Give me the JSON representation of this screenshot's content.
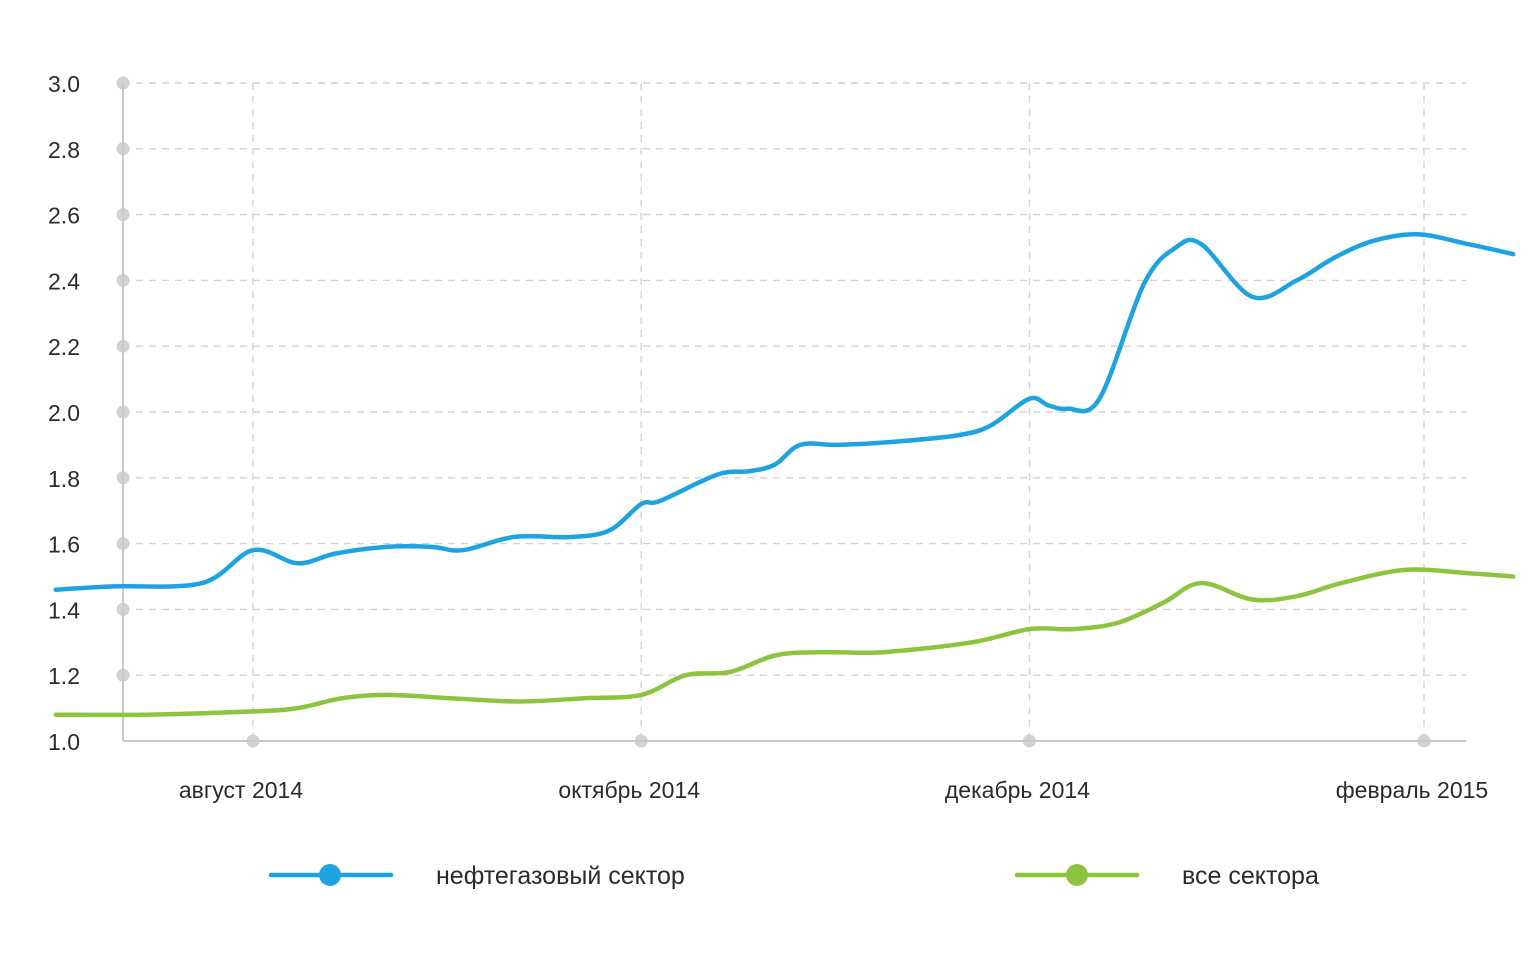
{
  "chart_data": {
    "type": "line",
    "title": "",
    "xlabel": "",
    "ylabel": "",
    "ylim": [
      1.0,
      3.0
    ],
    "yticks": [
      "1.0",
      "1.2",
      "1.4",
      "1.6",
      "1.8",
      "2.0",
      "2.2",
      "2.4",
      "2.6",
      "2.8",
      "3.0"
    ],
    "xlim": [
      "2014-07-01",
      "2015-02-15"
    ],
    "xticks": [
      {
        "date": "2014-08-01",
        "label": "август 2014"
      },
      {
        "date": "2014-10-01",
        "label": "октябрь 2014"
      },
      {
        "date": "2014-12-01",
        "label": "декабрь 2014"
      },
      {
        "date": "2015-02-01",
        "label": "февраль 2015"
      }
    ],
    "grid": true,
    "legend_position": "bottom",
    "series": [
      {
        "name": "нефтегазовый сектор",
        "color": "#1fa3e0",
        "points": [
          [
            "2014-07-01",
            1.46
          ],
          [
            "2014-07-10",
            1.47
          ],
          [
            "2014-07-24",
            1.48
          ],
          [
            "2014-08-01",
            1.58
          ],
          [
            "2014-08-08",
            1.54
          ],
          [
            "2014-08-14",
            1.57
          ],
          [
            "2014-08-22",
            1.59
          ],
          [
            "2014-08-29",
            1.59
          ],
          [
            "2014-09-03",
            1.58
          ],
          [
            "2014-09-11",
            1.62
          ],
          [
            "2014-09-20",
            1.62
          ],
          [
            "2014-09-26",
            1.64
          ],
          [
            "2014-10-01",
            1.72
          ],
          [
            "2014-10-04",
            1.73
          ],
          [
            "2014-10-13",
            1.81
          ],
          [
            "2014-10-18",
            1.82
          ],
          [
            "2014-10-22",
            1.84
          ],
          [
            "2014-10-26",
            1.9
          ],
          [
            "2014-11-01",
            1.9
          ],
          [
            "2014-11-10",
            1.91
          ],
          [
            "2014-11-20",
            1.93
          ],
          [
            "2014-11-25",
            1.96
          ],
          [
            "2014-12-01",
            2.04
          ],
          [
            "2014-12-04",
            2.02
          ],
          [
            "2014-12-07",
            2.01
          ],
          [
            "2014-12-12",
            2.04
          ],
          [
            "2014-12-19",
            2.39
          ],
          [
            "2014-12-24",
            2.5
          ],
          [
            "2014-12-28",
            2.51
          ],
          [
            "2015-01-05",
            2.35
          ],
          [
            "2015-01-12",
            2.4
          ],
          [
            "2015-01-18",
            2.47
          ],
          [
            "2015-01-24",
            2.52
          ],
          [
            "2015-01-31",
            2.54
          ],
          [
            "2015-02-08",
            2.51
          ],
          [
            "2015-02-15",
            2.48
          ]
        ]
      },
      {
        "name": "все сектора",
        "color": "#8cc43f",
        "points": [
          [
            "2014-07-01",
            1.08
          ],
          [
            "2014-07-15",
            1.08
          ],
          [
            "2014-08-01",
            1.09
          ],
          [
            "2014-08-08",
            1.1
          ],
          [
            "2014-08-15",
            1.13
          ],
          [
            "2014-08-22",
            1.14
          ],
          [
            "2014-09-01",
            1.13
          ],
          [
            "2014-09-12",
            1.12
          ],
          [
            "2014-09-22",
            1.13
          ],
          [
            "2014-10-01",
            1.14
          ],
          [
            "2014-10-08",
            1.2
          ],
          [
            "2014-10-15",
            1.21
          ],
          [
            "2014-10-22",
            1.26
          ],
          [
            "2014-10-29",
            1.27
          ],
          [
            "2014-11-08",
            1.27
          ],
          [
            "2014-11-22",
            1.3
          ],
          [
            "2014-12-01",
            1.34
          ],
          [
            "2014-12-08",
            1.34
          ],
          [
            "2014-12-15",
            1.36
          ],
          [
            "2014-12-22",
            1.42
          ],
          [
            "2014-12-28",
            1.48
          ],
          [
            "2015-01-05",
            1.43
          ],
          [
            "2015-01-12",
            1.44
          ],
          [
            "2015-01-19",
            1.48
          ],
          [
            "2015-01-29",
            1.52
          ],
          [
            "2015-02-08",
            1.51
          ],
          [
            "2015-02-15",
            1.5
          ]
        ]
      }
    ]
  }
}
